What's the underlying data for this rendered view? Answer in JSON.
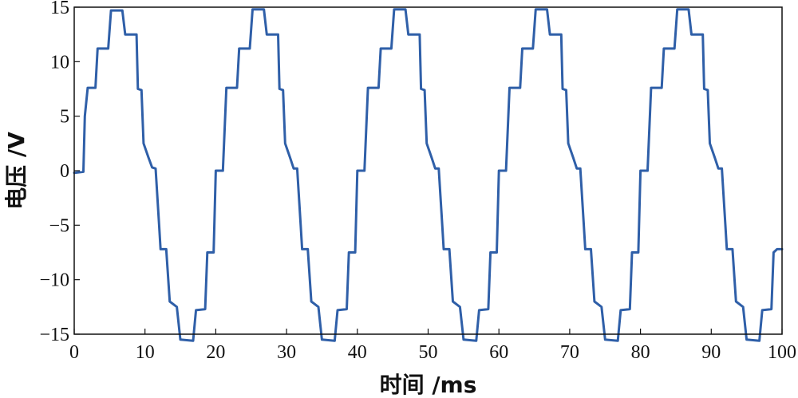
{
  "chart_data": {
    "type": "line",
    "title": "",
    "xlabel": "时间 /ms",
    "ylabel": "电压 /V",
    "xlim": [
      0,
      100
    ],
    "ylim": [
      -15,
      15
    ],
    "xticks": [
      0,
      10,
      20,
      30,
      40,
      50,
      60,
      70,
      80,
      90,
      100
    ],
    "yticks": [
      15,
      10,
      5,
      0,
      -5,
      -10,
      -15
    ],
    "ytick_labels": [
      "15",
      "10",
      "5",
      "0",
      "−5",
      "−10",
      "−15"
    ],
    "grid": false,
    "legend": "none",
    "series": [
      {
        "color": "#2f5fa8",
        "points": [
          [
            0,
            -0.2
          ],
          [
            1.3,
            -0.1
          ],
          [
            1.5,
            5
          ],
          [
            1.9,
            7.6
          ],
          [
            3.0,
            7.6
          ],
          [
            3.3,
            11.2
          ],
          [
            4.8,
            11.2
          ],
          [
            5.2,
            14.7
          ],
          [
            6.8,
            14.7
          ],
          [
            7.2,
            12.5
          ],
          [
            8.8,
            12.5
          ],
          [
            9.0,
            7.5
          ],
          [
            9.5,
            7.4
          ],
          [
            9.8,
            2.5
          ],
          [
            10.5,
            1.2
          ],
          [
            11.0,
            0.3
          ],
          [
            11.5,
            0.2
          ],
          [
            12.0,
            -5
          ],
          [
            12.2,
            -7.2
          ],
          [
            13.0,
            -7.2
          ],
          [
            13.5,
            -12.0
          ],
          [
            14.5,
            -12.5
          ],
          [
            15.0,
            -15.5
          ],
          [
            16.8,
            -15.6
          ],
          [
            17.2,
            -12.8
          ],
          [
            18.5,
            -12.7
          ],
          [
            18.8,
            -7.5
          ],
          [
            19.7,
            -7.5
          ],
          [
            20.0,
            0
          ],
          [
            21.0,
            0
          ],
          [
            21.5,
            7.6
          ],
          [
            23.0,
            7.6
          ],
          [
            23.3,
            11.2
          ],
          [
            24.8,
            11.2
          ],
          [
            25.2,
            14.8
          ],
          [
            26.8,
            14.8
          ],
          [
            27.2,
            12.5
          ],
          [
            28.8,
            12.5
          ],
          [
            29.0,
            7.5
          ],
          [
            29.5,
            7.4
          ],
          [
            29.8,
            2.5
          ],
          [
            30.5,
            1.2
          ],
          [
            31.0,
            0.2
          ],
          [
            31.5,
            0.2
          ],
          [
            32.0,
            -5
          ],
          [
            32.2,
            -7.2
          ],
          [
            33.0,
            -7.2
          ],
          [
            33.5,
            -12.0
          ],
          [
            34.5,
            -12.5
          ],
          [
            35.0,
            -15.5
          ],
          [
            36.8,
            -15.6
          ],
          [
            37.2,
            -12.8
          ],
          [
            38.5,
            -12.7
          ],
          [
            38.8,
            -7.5
          ],
          [
            39.7,
            -7.5
          ],
          [
            40.0,
            0
          ],
          [
            41.0,
            0
          ],
          [
            41.5,
            7.6
          ],
          [
            43.0,
            7.6
          ],
          [
            43.3,
            11.2
          ],
          [
            44.8,
            11.2
          ],
          [
            45.2,
            14.8
          ],
          [
            46.8,
            14.8
          ],
          [
            47.2,
            12.5
          ],
          [
            48.8,
            12.5
          ],
          [
            49.0,
            7.5
          ],
          [
            49.5,
            7.4
          ],
          [
            49.8,
            2.5
          ],
          [
            50.5,
            1.2
          ],
          [
            51.0,
            0.2
          ],
          [
            51.5,
            0.2
          ],
          [
            52.0,
            -5
          ],
          [
            52.2,
            -7.2
          ],
          [
            53.0,
            -7.2
          ],
          [
            53.5,
            -12.0
          ],
          [
            54.5,
            -12.5
          ],
          [
            55.0,
            -15.5
          ],
          [
            56.8,
            -15.6
          ],
          [
            57.2,
            -12.8
          ],
          [
            58.5,
            -12.7
          ],
          [
            58.8,
            -7.5
          ],
          [
            59.7,
            -7.5
          ],
          [
            60.0,
            0
          ],
          [
            61.0,
            0
          ],
          [
            61.5,
            7.6
          ],
          [
            63.0,
            7.6
          ],
          [
            63.3,
            11.2
          ],
          [
            64.8,
            11.2
          ],
          [
            65.2,
            14.8
          ],
          [
            66.8,
            14.8
          ],
          [
            67.2,
            12.5
          ],
          [
            68.8,
            12.5
          ],
          [
            69.0,
            7.5
          ],
          [
            69.5,
            7.4
          ],
          [
            69.8,
            2.5
          ],
          [
            70.5,
            1.2
          ],
          [
            71.0,
            0.2
          ],
          [
            71.5,
            0.2
          ],
          [
            72.0,
            -5
          ],
          [
            72.2,
            -7.2
          ],
          [
            73.0,
            -7.2
          ],
          [
            73.5,
            -12.0
          ],
          [
            74.5,
            -12.5
          ],
          [
            75.0,
            -15.5
          ],
          [
            76.8,
            -15.6
          ],
          [
            77.2,
            -12.8
          ],
          [
            78.5,
            -12.7
          ],
          [
            78.8,
            -7.5
          ],
          [
            79.7,
            -7.5
          ],
          [
            80.0,
            0
          ],
          [
            81.0,
            0
          ],
          [
            81.5,
            7.6
          ],
          [
            83.0,
            7.6
          ],
          [
            83.3,
            11.2
          ],
          [
            84.8,
            11.2
          ],
          [
            85.2,
            14.8
          ],
          [
            86.8,
            14.8
          ],
          [
            87.2,
            12.5
          ],
          [
            88.8,
            12.5
          ],
          [
            89.0,
            7.5
          ],
          [
            89.5,
            7.4
          ],
          [
            89.8,
            2.5
          ],
          [
            90.5,
            1.2
          ],
          [
            91.0,
            0.2
          ],
          [
            91.5,
            0.2
          ],
          [
            92.0,
            -5
          ],
          [
            92.2,
            -7.2
          ],
          [
            93.0,
            -7.2
          ],
          [
            93.5,
            -12.0
          ],
          [
            94.5,
            -12.5
          ],
          [
            95.0,
            -15.5
          ],
          [
            96.8,
            -15.6
          ],
          [
            97.2,
            -12.8
          ],
          [
            98.5,
            -12.7
          ],
          [
            98.8,
            -7.5
          ],
          [
            99.3,
            -7.2
          ],
          [
            100,
            -7.2
          ]
        ]
      }
    ]
  }
}
